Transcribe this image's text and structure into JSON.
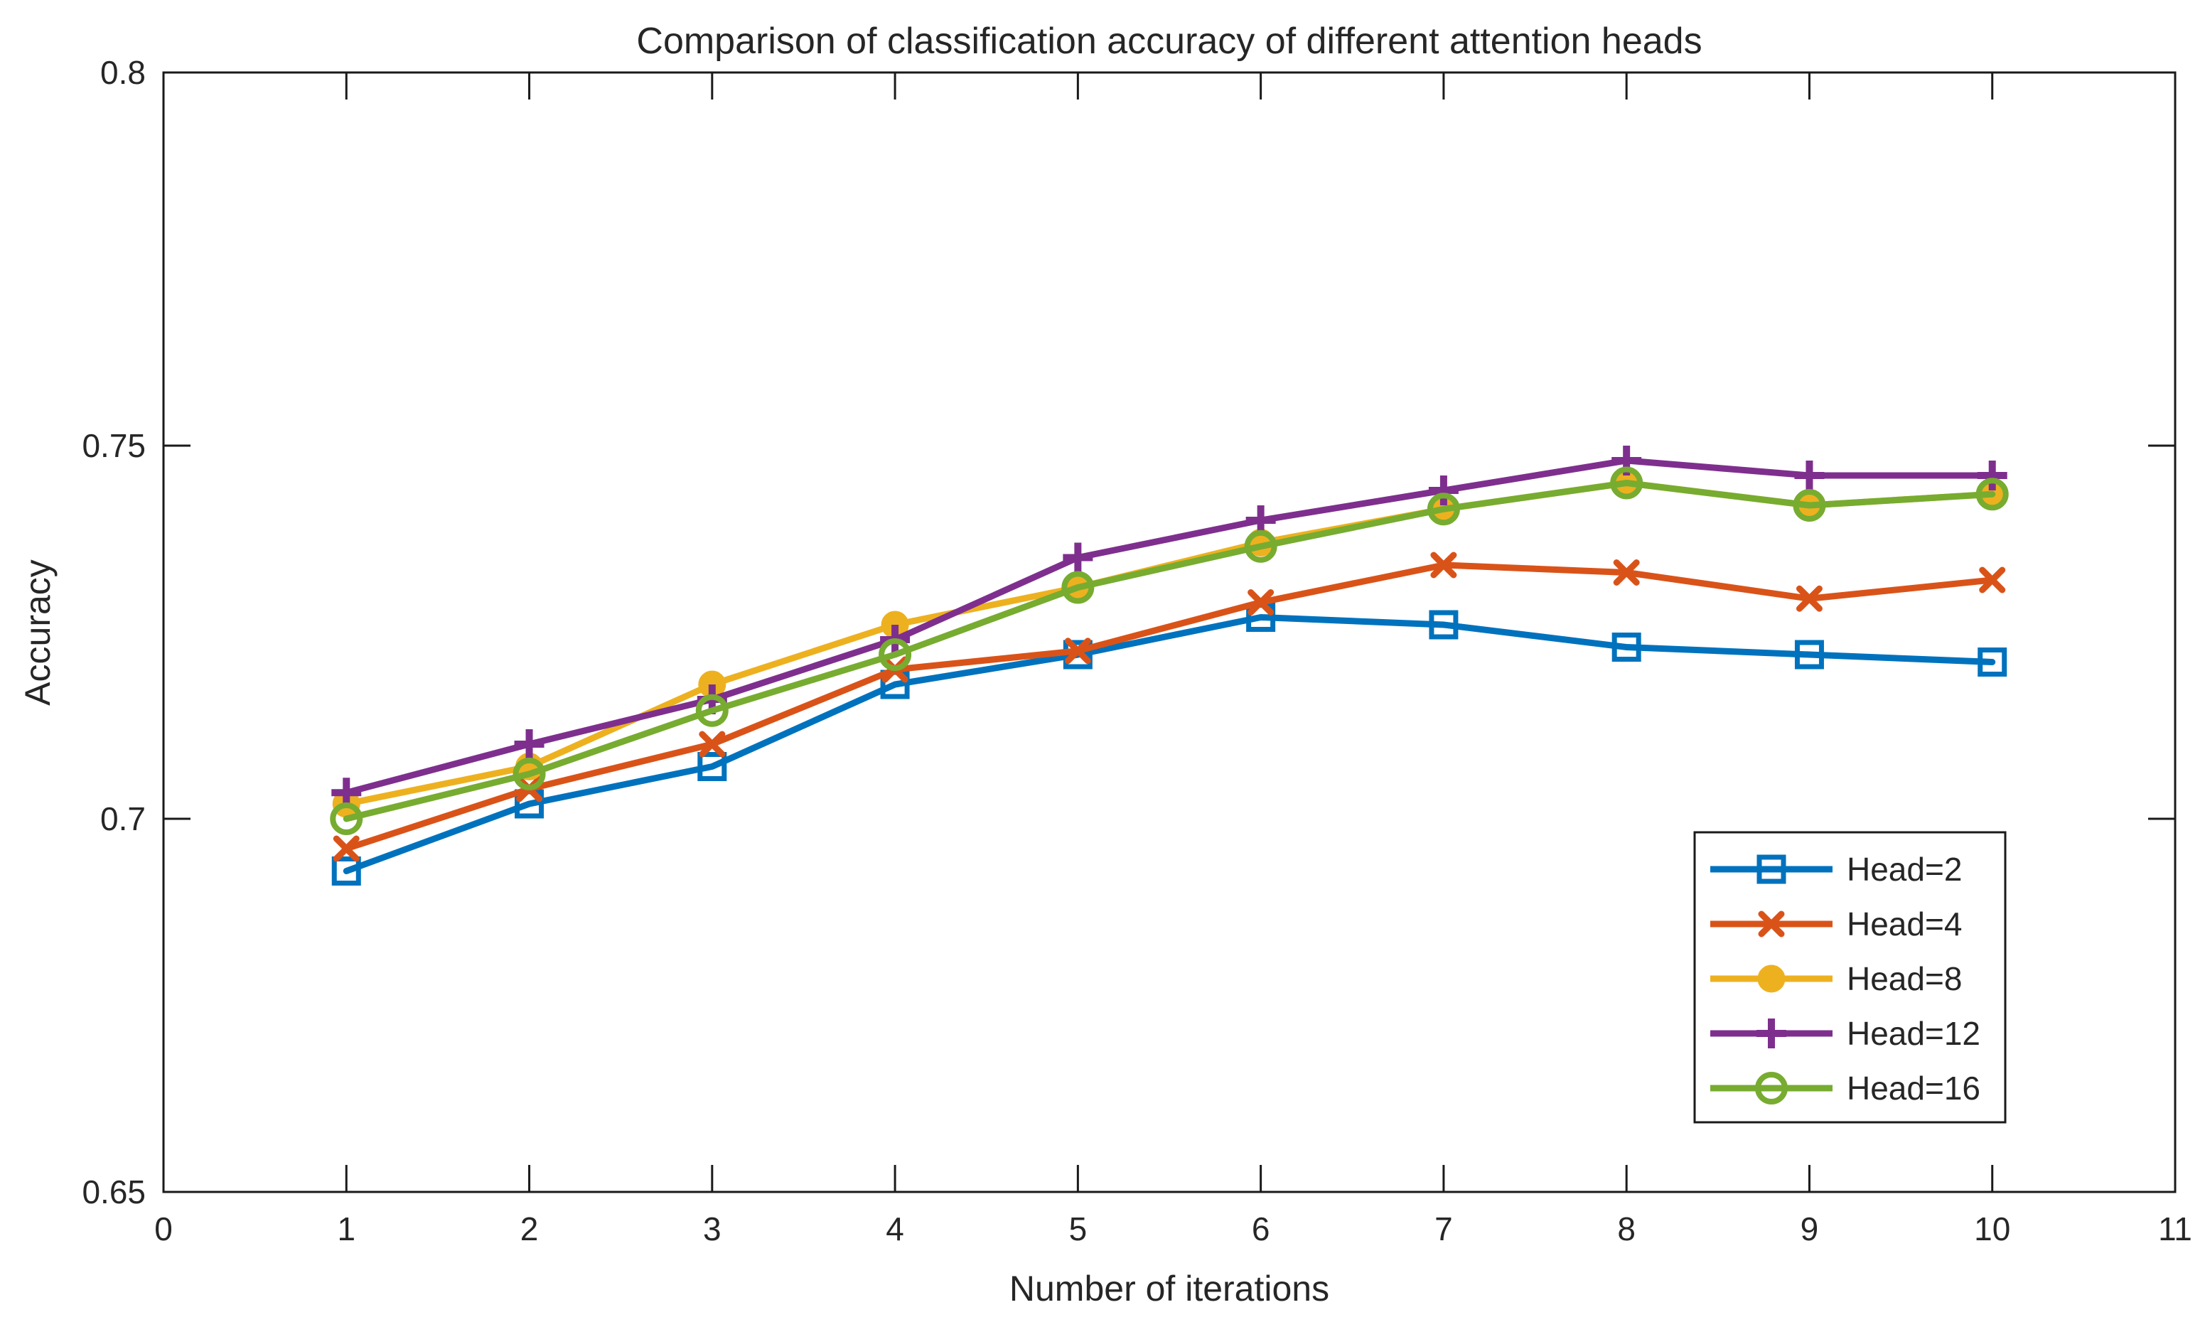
{
  "figure": {
    "background": "#ffffff",
    "axis_color": "#262626",
    "box_color": "#1a1a1a"
  },
  "chart_data": {
    "type": "line",
    "title": "Comparison of classification accuracy of different attention heads",
    "xlabel": "Number of iterations",
    "ylabel": "Accuracy",
    "xlim": [
      0,
      11
    ],
    "ylim": [
      0.65,
      0.8
    ],
    "x_ticks": [
      0,
      1,
      2,
      3,
      4,
      5,
      6,
      7,
      8,
      9,
      10,
      11
    ],
    "x_tick_labels": [
      "0",
      "1",
      "2",
      "3",
      "4",
      "5",
      "6",
      "7",
      "8",
      "9",
      "10",
      "11"
    ],
    "y_ticks": [
      0.65,
      0.7,
      0.75,
      0.8
    ],
    "y_tick_labels": [
      "0.65",
      "0.7",
      "0.75",
      "0.8"
    ],
    "grid": false,
    "legend_position": "lower right",
    "x": [
      1,
      2,
      3,
      4,
      5,
      6,
      7,
      8,
      9,
      10
    ],
    "series": [
      {
        "name": "Head=2",
        "color": "#0072BD",
        "marker": "square",
        "values": [
          0.693,
          0.702,
          0.707,
          0.718,
          0.722,
          0.727,
          0.726,
          0.723,
          0.722,
          0.721
        ]
      },
      {
        "name": "Head=4",
        "color": "#D95319",
        "marker": "x",
        "values": [
          0.696,
          0.704,
          0.71,
          0.72,
          0.7225,
          0.729,
          0.734,
          0.733,
          0.7295,
          0.732
        ]
      },
      {
        "name": "Head=8",
        "color": "#EDB120",
        "marker": "circle-filled",
        "values": [
          0.702,
          0.707,
          0.718,
          0.726,
          0.731,
          0.737,
          0.7415,
          0.745,
          0.742,
          0.7435
        ]
      },
      {
        "name": "Head=12",
        "color": "#7E2F8E",
        "marker": "plus",
        "values": [
          0.7035,
          0.71,
          0.716,
          0.724,
          0.735,
          0.74,
          0.744,
          0.748,
          0.746,
          0.746
        ]
      },
      {
        "name": "Head=16",
        "color": "#77AC30",
        "marker": "circle-open",
        "values": [
          0.7,
          0.706,
          0.7145,
          0.722,
          0.731,
          0.7365,
          0.7415,
          0.745,
          0.742,
          0.7435
        ]
      }
    ]
  }
}
